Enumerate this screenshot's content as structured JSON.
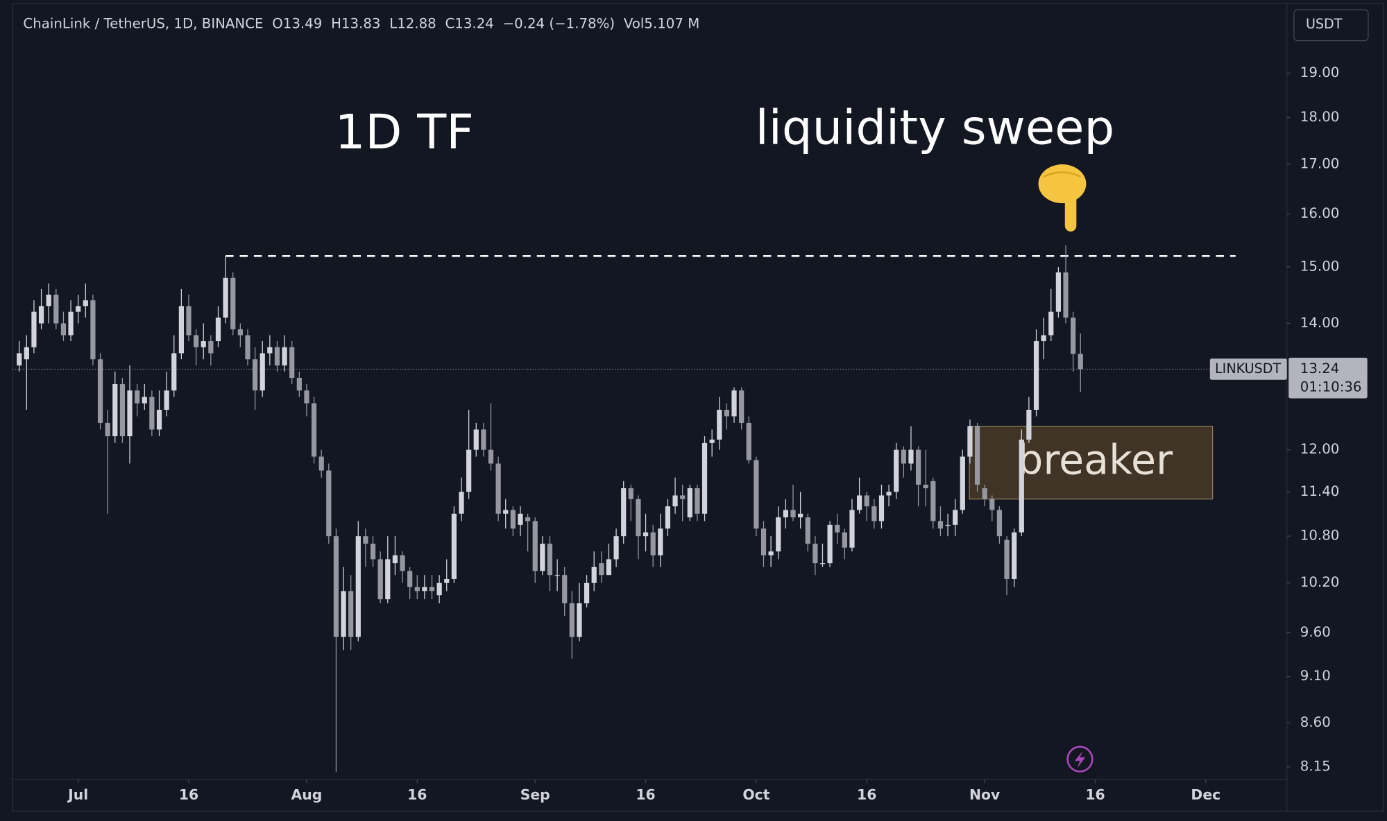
{
  "header": [
    "ChainLink / TetherUS, 1D, BINANCE",
    "O13.49",
    "H13.83",
    "L12.88",
    "C13.24",
    "−0.24 (−1.78%)",
    "Vol5.107 M"
  ],
  "currency_button": "USDT",
  "chart_data": {
    "type": "candlestick",
    "log_scale": true,
    "grid": false,
    "up_color": "#d1d4dc",
    "down_color": "#9598a1",
    "annotations": [
      "1D TF",
      "liquidity sweep"
    ],
    "zone": {
      "label": "breaker",
      "range": [
        11.3,
        12.35
      ]
    },
    "sweep_level": 15.2,
    "symbol_label": "LINKUSDT",
    "countdown": "01:10:36",
    "xlim": [
      -0.9,
      172
    ],
    "xticks": [
      {
        "value": 8,
        "label": "Jul"
      },
      {
        "value": 23,
        "label": "16"
      },
      {
        "value": 39,
        "label": "Aug"
      },
      {
        "value": 54,
        "label": "16"
      },
      {
        "value": 70,
        "label": "Sep"
      },
      {
        "value": 85,
        "label": "16"
      },
      {
        "value": 100,
        "label": "Oct"
      },
      {
        "value": 115,
        "label": "16"
      },
      {
        "value": 131,
        "label": "Nov"
      },
      {
        "value": 146,
        "label": "16"
      },
      {
        "value": 161,
        "label": "Dec"
      }
    ],
    "ylim": [
      8.0,
      20.55
    ],
    "yticks": [
      {
        "value": 19,
        "label": "19.00"
      },
      {
        "value": 18,
        "label": "18.00"
      },
      {
        "value": 17,
        "label": "17.00"
      },
      {
        "value": 16,
        "label": "16.00"
      },
      {
        "value": 15,
        "label": "15.00"
      },
      {
        "value": 14,
        "label": "14.00"
      },
      {
        "value": 12,
        "label": "12.00"
      },
      {
        "value": 11.4,
        "label": "11.40"
      },
      {
        "value": 10.8,
        "label": "10.80"
      },
      {
        "value": 10.2,
        "label": "10.20"
      },
      {
        "value": 9.6,
        "label": "9.60"
      },
      {
        "value": 9.1,
        "label": "9.10"
      },
      {
        "value": 8.6,
        "label": "8.60"
      },
      {
        "value": 8.15,
        "label": "8.15"
      }
    ],
    "open": [
      13.3,
      13.4,
      13.6,
      14.0,
      14.3,
      14.5,
      14.0,
      13.8,
      14.2,
      14.3,
      14.4,
      13.4,
      12.4,
      12.2,
      13.0,
      12.2,
      12.9,
      12.7,
      12.8,
      12.3,
      12.6,
      12.9,
      13.5,
      14.3,
      13.8,
      13.6,
      13.7,
      13.7,
      14.1,
      14.8,
      13.9,
      13.8,
      13.4,
      12.9,
      13.5,
      13.6,
      13.3,
      13.6,
      13.1,
      12.9,
      12.7,
      11.9,
      11.7,
      10.8,
      9.55,
      10.1,
      9.55,
      10.8,
      10.7,
      10.5,
      10.0,
      10.45,
      10.55,
      10.35,
      10.15,
      10.1,
      10.15,
      10.05,
      10.2,
      10.25,
      11.1,
      11.4,
      12.0,
      12.3,
      12.0,
      11.8,
      11.1,
      11.15,
      10.95,
      11.05,
      11.0,
      10.35,
      10.7,
      10.3,
      10.3,
      9.95,
      9.55,
      9.95,
      10.2,
      10.45,
      10.3,
      10.5,
      10.8,
      11.45,
      11.3,
      10.8,
      10.85,
      10.55,
      10.9,
      11.2,
      11.35,
      11.05,
      11.45,
      11.1,
      12.1,
      12.15,
      12.6,
      12.5,
      12.9,
      12.4,
      11.85,
      10.9,
      10.55,
      10.6,
      11.05,
      11.15,
      11.05,
      11.05,
      10.7,
      10.45,
      10.45,
      10.95,
      10.85,
      10.65,
      11.15,
      11.35,
      11.2,
      11.0,
      11.35,
      11.4,
      12.0,
      11.8,
      12.0,
      11.5,
      11.55,
      11.0,
      10.95,
      10.95,
      11.15,
      11.9,
      12.35,
      11.45,
      11.3,
      11.15,
      10.75,
      10.25,
      10.85,
      12.15,
      12.6,
      13.7,
      13.8,
      14.2,
      14.9,
      14.1,
      13.49
    ],
    "high": [
      13.7,
      13.8,
      14.4,
      14.6,
      14.7,
      14.6,
      14.2,
      14.4,
      14.5,
      14.7,
      14.5,
      13.5,
      12.6,
      13.2,
      13.1,
      13.3,
      13.0,
      13.0,
      12.9,
      12.9,
      13.2,
      13.8,
      14.6,
      14.5,
      13.9,
      14.0,
      13.8,
      14.3,
      15.2,
      14.9,
      14.0,
      13.9,
      13.6,
      13.7,
      13.8,
      13.7,
      13.8,
      13.7,
      13.2,
      13.0,
      12.8,
      12.0,
      11.8,
      10.9,
      10.4,
      10.3,
      11.0,
      10.9,
      10.8,
      10.6,
      10.8,
      10.8,
      10.6,
      10.4,
      10.3,
      10.3,
      10.3,
      10.3,
      10.5,
      11.2,
      11.6,
      12.6,
      12.4,
      12.4,
      12.7,
      11.9,
      11.3,
      11.2,
      11.2,
      11.1,
      11.05,
      10.8,
      10.8,
      10.5,
      10.4,
      10.1,
      10.2,
      10.3,
      10.6,
      10.6,
      10.7,
      10.9,
      11.55,
      11.5,
      11.35,
      11.1,
      10.95,
      11.1,
      11.3,
      11.6,
      11.5,
      11.5,
      11.5,
      12.2,
      12.3,
      12.8,
      12.7,
      12.95,
      12.95,
      12.5,
      11.9,
      11.0,
      10.8,
      11.2,
      11.3,
      11.5,
      11.4,
      11.1,
      10.8,
      10.7,
      11.0,
      11.1,
      10.9,
      11.3,
      11.6,
      11.4,
      11.3,
      11.5,
      11.5,
      12.1,
      12.05,
      12.35,
      12.05,
      12.0,
      11.6,
      11.2,
      11.1,
      11.3,
      12.0,
      12.45,
      12.4,
      11.5,
      11.35,
      11.2,
      10.8,
      10.9,
      12.3,
      12.8,
      13.9,
      14.1,
      14.6,
      15.0,
      15.4,
      14.2,
      13.83
    ],
    "low": [
      13.2,
      12.6,
      13.5,
      13.9,
      14.0,
      13.9,
      13.7,
      13.7,
      14.0,
      14.1,
      13.3,
      12.3,
      11.1,
      12.1,
      12.1,
      11.8,
      12.5,
      12.6,
      12.2,
      12.2,
      12.5,
      12.8,
      13.4,
      13.7,
      13.3,
      13.4,
      13.3,
      13.6,
      14.0,
      13.8,
      13.6,
      13.3,
      12.6,
      12.8,
      13.3,
      13.2,
      13.2,
      13.0,
      12.8,
      12.5,
      11.8,
      11.6,
      10.7,
      8.1,
      9.4,
      9.4,
      9.5,
      10.4,
      10.4,
      9.95,
      9.95,
      10.3,
      10.2,
      10.0,
      10.0,
      10.0,
      10.0,
      9.95,
      10.1,
      10.2,
      11.0,
      11.3,
      11.9,
      11.9,
      11.7,
      11.0,
      10.9,
      10.8,
      10.8,
      10.6,
      10.2,
      10.3,
      10.1,
      10.1,
      9.8,
      9.3,
      9.5,
      9.9,
      10.1,
      10.2,
      10.3,
      10.4,
      10.7,
      11.0,
      10.5,
      10.6,
      10.4,
      10.4,
      10.8,
      11.1,
      11.0,
      11.0,
      11.0,
      11.0,
      11.9,
      12.0,
      12.3,
      12.4,
      12.3,
      11.8,
      10.8,
      10.4,
      10.4,
      10.5,
      10.9,
      11.0,
      10.9,
      10.6,
      10.3,
      10.4,
      10.4,
      10.7,
      10.5,
      10.6,
      11.1,
      11.0,
      10.9,
      10.9,
      11.2,
      11.3,
      11.6,
      11.7,
      11.2,
      11.2,
      10.9,
      10.8,
      10.8,
      10.8,
      11.1,
      11.8,
      11.4,
      11.2,
      11.0,
      10.7,
      10.05,
      10.15,
      10.8,
      12.1,
      12.5,
      13.4,
      13.7,
      14.1,
      14.0,
      13.2,
      12.88
    ],
    "close": [
      13.5,
      13.6,
      14.2,
      14.3,
      14.5,
      14.0,
      13.8,
      14.2,
      14.3,
      14.4,
      13.4,
      12.4,
      12.2,
      13.0,
      12.2,
      12.9,
      12.7,
      12.8,
      12.3,
      12.6,
      12.9,
      13.5,
      14.3,
      13.8,
      13.6,
      13.7,
      13.5,
      14.1,
      14.8,
      13.9,
      13.8,
      13.4,
      12.9,
      13.5,
      13.6,
      13.3,
      13.6,
      13.1,
      12.9,
      12.7,
      11.9,
      11.7,
      10.8,
      9.55,
      10.1,
      9.55,
      10.8,
      10.7,
      10.5,
      10.0,
      10.5,
      10.55,
      10.35,
      10.15,
      10.1,
      10.15,
      10.1,
      10.2,
      10.25,
      11.1,
      11.4,
      12.0,
      12.3,
      12.0,
      11.8,
      11.1,
      11.15,
      10.9,
      11.1,
      11.0,
      10.35,
      10.7,
      10.3,
      10.3,
      9.95,
      9.55,
      9.95,
      10.2,
      10.4,
      10.3,
      10.5,
      10.8,
      11.45,
      11.3,
      10.8,
      10.85,
      10.55,
      10.9,
      11.2,
      11.35,
      11.3,
      11.45,
      11.1,
      12.1,
      12.15,
      12.6,
      12.5,
      12.9,
      12.4,
      11.85,
      10.9,
      10.55,
      10.6,
      11.05,
      11.15,
      11.05,
      11.1,
      10.7,
      10.45,
      10.45,
      10.95,
      10.85,
      10.65,
      11.15,
      11.35,
      11.2,
      11.0,
      11.35,
      11.4,
      12.0,
      11.8,
      12.0,
      11.5,
      11.45,
      11.0,
      10.9,
      10.95,
      11.15,
      11.9,
      12.35,
      11.5,
      11.3,
      11.15,
      10.8,
      10.25,
      10.85,
      12.15,
      12.6,
      13.7,
      13.8,
      14.2,
      14.9,
      14.1,
      13.49,
      13.24
    ]
  }
}
